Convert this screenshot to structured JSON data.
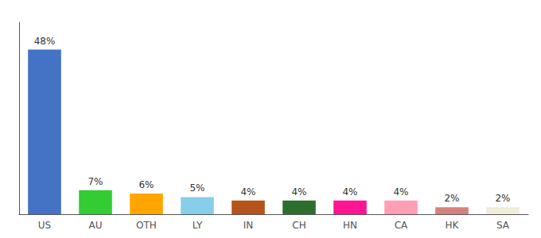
{
  "chart_data": {
    "type": "bar",
    "categories": [
      "US",
      "AU",
      "OTH",
      "LY",
      "IN",
      "CH",
      "HN",
      "CA",
      "HK",
      "SA"
    ],
    "values": [
      48,
      7,
      6,
      5,
      4,
      4,
      4,
      4,
      2,
      2
    ],
    "value_labels": [
      "48%",
      "7%",
      "6%",
      "5%",
      "4%",
      "4%",
      "4%",
      "4%",
      "2%",
      "2%"
    ],
    "colors": [
      "#4472C4",
      "#33CC33",
      "#FFA500",
      "#87CEEB",
      "#B5531A",
      "#2D6E2D",
      "#FF1493",
      "#FF9EB5",
      "#D4827A",
      "#F0EDD8"
    ],
    "ylim": [
      0,
      56
    ],
    "data_labels": true,
    "tick_labels": "x",
    "grid": false
  }
}
